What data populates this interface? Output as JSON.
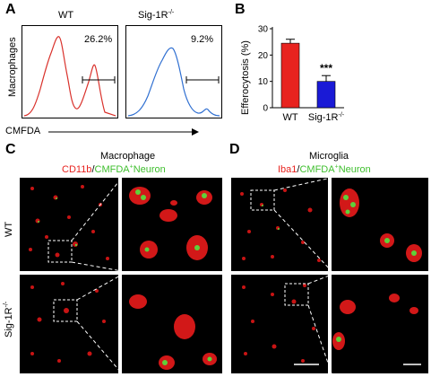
{
  "panels": {
    "a": {
      "letter": "A",
      "label_wt": "WT",
      "label_ko": "Sig-1R",
      "label_ko_sup": "-/-",
      "pct_wt": "26.2%",
      "pct_ko": "9.2%",
      "y_axis": "Macrophages",
      "x_axis": "CMFDA",
      "colors": {
        "wt": "#d9312b",
        "ko": "#2f6fd1"
      }
    },
    "b": {
      "letter": "B",
      "significance": "***",
      "chart_data": {
        "type": "bar",
        "categories": [
          "WT",
          "Sig-1R-/-"
        ],
        "category_labels": [
          {
            "base": "WT",
            "sup": ""
          },
          {
            "base": "Sig-1R",
            "sup": "-/-"
          }
        ],
        "values": [
          24.5,
          10.0
        ],
        "errors": [
          1.5,
          2.2
        ],
        "colors": [
          "#e8231f",
          "#1a1ad6"
        ],
        "ylabel": "Efferocytosis (%)",
        "ylim": [
          0,
          30
        ],
        "yticks": [
          0,
          10,
          20,
          30
        ],
        "grid": false
      }
    },
    "c": {
      "letter": "C",
      "title": "Macrophage",
      "stain_red": "CD11b",
      "stain_sep": "/",
      "stain_green": "CMFDA",
      "stain_green_sup": "+",
      "stain_green_tail": "Neuron",
      "row_wt": "WT",
      "row_ko": "Sig-1R",
      "row_ko_sup": "-/-"
    },
    "d": {
      "letter": "D",
      "title": "Microglia",
      "stain_red": "Iba1",
      "stain_sep": "/",
      "stain_green": "CMFDA",
      "stain_green_sup": "+",
      "stain_green_tail": "Neuron"
    }
  }
}
